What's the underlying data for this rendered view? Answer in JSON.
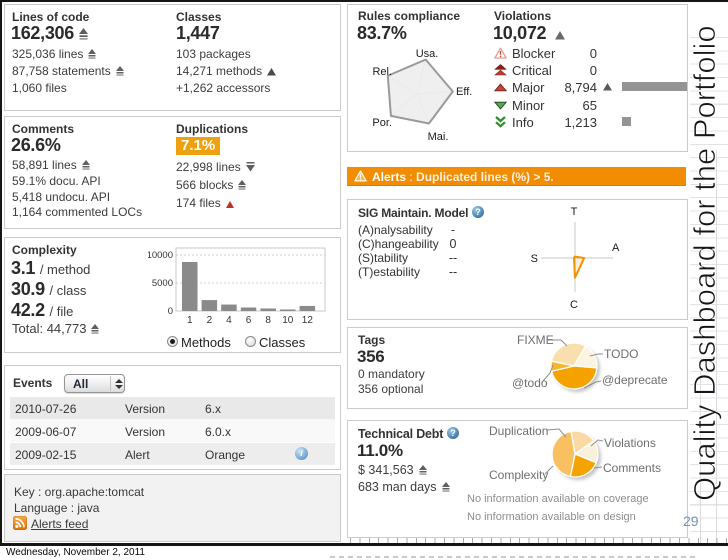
{
  "slide": {
    "vertical_title": "Quality Dashboard for the Portfolio",
    "page_number": "29",
    "date": "Wednesday, November 2, 2011"
  },
  "panels": {
    "lines_of_code": {
      "title": "Lines of code",
      "value": "162,306",
      "metrics": [
        "325,036 lines",
        "87,758 statements",
        "1,060 files"
      ]
    },
    "classes": {
      "title": "Classes",
      "value": "1,447",
      "metrics": [
        "103 packages",
        "14,271 methods",
        "+1,262 accessors"
      ]
    },
    "comments": {
      "title": "Comments",
      "value": "26.6%",
      "metrics": [
        "58,891 lines",
        "59.1% docu. API",
        "5,418 undocu. API",
        "1,164 commented LOCs"
      ]
    },
    "duplications": {
      "title": "Duplications",
      "value": "7.1%",
      "metrics": [
        "22,998 lines",
        "566 blocks",
        "174 files"
      ]
    },
    "complexity": {
      "title": "Complexity",
      "per_method_value": "3.1",
      "per_method_label": "/ method",
      "per_class_value": "30.9",
      "per_class_label": "/ class",
      "per_file_value": "42.2",
      "per_file_label": "/ file",
      "total_label": "Total:",
      "total_value": "44,773",
      "radio_methods": "Methods",
      "radio_classes": "Classes"
    },
    "events": {
      "title": "Events",
      "filter_value": "All",
      "rows": [
        {
          "date": "2010-07-26",
          "type": "Version",
          "value": "6.x"
        },
        {
          "date": "2009-06-07",
          "type": "Version",
          "value": "6.0.x"
        },
        {
          "date": "2009-02-15",
          "type": "Alert",
          "value": "Orange"
        }
      ]
    },
    "key": {
      "key_line": "Key : org.apache:tomcat",
      "language_line": "Language : java",
      "feed_link": "Alerts feed"
    },
    "rules_compliance": {
      "title": "Rules compliance",
      "value": "83.7%"
    },
    "violations": {
      "title": "Violations",
      "value": "10,072",
      "rows": [
        {
          "severity": "Blocker",
          "count": "0"
        },
        {
          "severity": "Critical",
          "count": "0"
        },
        {
          "severity": "Major",
          "count": "8,794"
        },
        {
          "severity": "Minor",
          "count": "65"
        },
        {
          "severity": "Info",
          "count": "1,213"
        }
      ]
    },
    "alerts_bar": {
      "label": "Alerts",
      "separator": " : ",
      "message": "Duplicated lines (%) > 5."
    },
    "sig": {
      "title": "SIG Maintain. Model",
      "rows": [
        {
          "label": "(A)nalysability",
          "value": "-"
        },
        {
          "label": "(C)hangeability",
          "value": "0"
        },
        {
          "label": "(S)tability",
          "value": "--"
        },
        {
          "label": "(T)estability",
          "value": "--"
        }
      ]
    },
    "tags": {
      "title": "Tags",
      "value": "356",
      "metrics": [
        "0 mandatory",
        "356 optional"
      ]
    },
    "technical_debt": {
      "title": "Technical Debt",
      "value": "11.0%",
      "metrics": [
        "$ 341,563",
        "683 man days"
      ],
      "notes": [
        "No information available on coverage",
        "No information available on design"
      ]
    }
  },
  "chart_data": [
    {
      "id": "complexity_distribution",
      "type": "bar",
      "title": "Complexity distribution",
      "categories": [
        "1",
        "2",
        "4",
        "6",
        "8",
        "10",
        "12"
      ],
      "values": [
        8750,
        1950,
        1150,
        625,
        450,
        270,
        900
      ],
      "xlabel": "",
      "ylabel": "",
      "ylim": [
        0,
        11250
      ],
      "yticks": [
        0,
        5000,
        10000
      ],
      "grid": true,
      "bar_color": "#8a8a8a"
    },
    {
      "id": "rules_radar",
      "type": "radar",
      "title": "Rules compliance radar",
      "axes": [
        "Usa.",
        "Eff.",
        "Mai.",
        "Por.",
        "Rel."
      ],
      "values": [
        0.96,
        0.97,
        0.86,
        0.92,
        0.93
      ],
      "rotation_deg": 14,
      "fill_color": "#ededed",
      "stroke_color": "#9a9a9a"
    },
    {
      "id": "sig_radar",
      "type": "radar",
      "title": "SIG maintainability radar",
      "axes": [
        "T",
        "A",
        "C",
        "S"
      ],
      "values": [
        0.04,
        0.24,
        0.58,
        0.03
      ],
      "rotation_deg": 0,
      "fill_color": "rgba(243,146,0,0.15)",
      "stroke_color": "#f39200"
    },
    {
      "id": "tags_pie",
      "type": "pie",
      "title": "Tags distribution",
      "start_deg": -78,
      "slices": [
        {
          "label": "FIXME",
          "fraction": 0.3,
          "color": "#fadfae"
        },
        {
          "label": "TODO",
          "fraction": 0.18,
          "color": "#fdf4df"
        },
        {
          "label": "@deprecate",
          "fraction": 0.45,
          "color": "#f5a200"
        },
        {
          "label": "@todo",
          "fraction": 0.07,
          "color": "#f8b42d"
        }
      ]
    },
    {
      "id": "debt_pie",
      "type": "pie",
      "title": "Technical debt repartition",
      "start_deg": -10,
      "slices": [
        {
          "label": "Duplication",
          "fraction": 0.18,
          "color": "#fad9a2"
        },
        {
          "label": "Violations",
          "fraction": 0.16,
          "color": "#faf1dc"
        },
        {
          "label": "Comments",
          "fraction": 0.22,
          "color": "#f5a300"
        },
        {
          "label": "Complexity",
          "fraction": 0.44,
          "color": "#f8c060"
        }
      ]
    },
    {
      "id": "violations_bars",
      "type": "bar",
      "title": "Violations by severity",
      "categories": [
        "Blocker",
        "Critical",
        "Major",
        "Minor",
        "Info"
      ],
      "values": [
        0,
        0,
        8794,
        65,
        1213
      ],
      "bar_color": "#949494"
    }
  ]
}
